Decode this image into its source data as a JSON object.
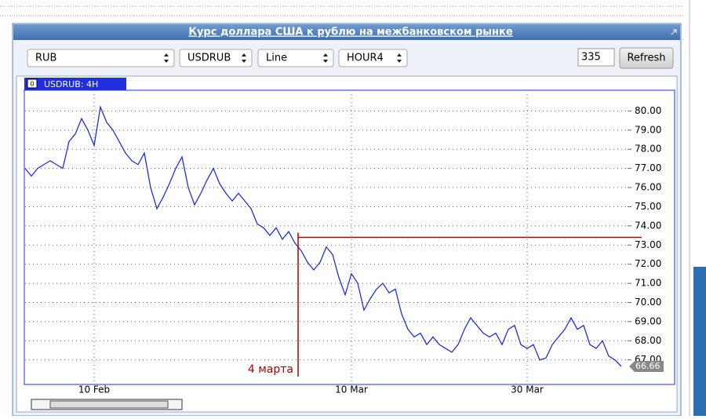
{
  "header": {
    "title": "Курс доллара США к рублю на межбанковском рынке"
  },
  "controls": {
    "selects": [
      "RUB",
      "USDRUB",
      "Line",
      "HOUR4"
    ],
    "count": "335",
    "button": "Refresh"
  },
  "chart_data": {
    "type": "line",
    "categories": [
      null,
      null,
      null,
      null,
      null,
      null,
      null,
      null,
      null,
      null,
      null,
      "10 Feb",
      null,
      null,
      null,
      null,
      null,
      null,
      null,
      null,
      null,
      null,
      null,
      null,
      null,
      null,
      null,
      null,
      null,
      null,
      null,
      null,
      null,
      null,
      null,
      null,
      null,
      null,
      null,
      null,
      null,
      null,
      null,
      null,
      null,
      null,
      null,
      null,
      null,
      null,
      null,
      null,
      "10 Mar",
      null,
      null,
      null,
      null,
      null,
      null,
      null,
      null,
      null,
      null,
      null,
      null,
      null,
      null,
      null,
      null,
      null,
      null,
      null,
      null,
      null,
      null,
      null,
      null,
      null,
      null,
      null,
      "30 Mar",
      null,
      null,
      null,
      null,
      null,
      null,
      null,
      null,
      null,
      null,
      null,
      null,
      null,
      null,
      null
    ],
    "series": [
      {
        "name": "USDRUB: 4H",
        "color": "#1f2fe0",
        "values": [
          77.0,
          76.6,
          77.0,
          77.2,
          77.4,
          77.2,
          77.0,
          78.4,
          78.8,
          79.6,
          79.0,
          78.2,
          80.2,
          79.4,
          79.0,
          78.4,
          77.8,
          77.4,
          77.2,
          77.8,
          76.0,
          74.9,
          75.5,
          76.2,
          77.0,
          77.6,
          76.0,
          75.1,
          75.7,
          76.4,
          77.0,
          76.2,
          75.7,
          75.3,
          75.7,
          75.3,
          74.9,
          74.1,
          73.9,
          73.5,
          73.9,
          73.3,
          73.7,
          73.1,
          72.7,
          72.1,
          71.7,
          72.1,
          72.9,
          72.5,
          71.3,
          70.4,
          71.5,
          71.0,
          69.6,
          70.2,
          70.7,
          71.0,
          70.5,
          70.7,
          69.4,
          68.6,
          68.2,
          68.4,
          67.8,
          68.2,
          67.8,
          67.6,
          67.4,
          67.8,
          68.6,
          69.2,
          68.8,
          68.4,
          68.2,
          68.4,
          67.8,
          68.6,
          68.8,
          67.8,
          67.6,
          67.8,
          67.0,
          67.1,
          67.8,
          68.2,
          68.6,
          69.2,
          68.6,
          68.8,
          67.8,
          67.6,
          68.0,
          67.2,
          67.0,
          66.66
        ]
      }
    ],
    "ylim": [
      65.8,
      81.0
    ],
    "yticks": [
      {
        "value": 67,
        "label": "67.00"
      },
      {
        "value": 68,
        "label": "68.00"
      },
      {
        "value": 69,
        "label": "69.00"
      },
      {
        "value": 70,
        "label": "70.00"
      },
      {
        "value": 71,
        "label": "71.00"
      },
      {
        "value": 72,
        "label": "72.00"
      },
      {
        "value": 73,
        "label": "73.00"
      },
      {
        "value": 74,
        "label": "74.00"
      },
      {
        "value": 75,
        "label": "75.00"
      },
      {
        "value": 76,
        "label": "76.00"
      },
      {
        "value": 77,
        "label": "77.00"
      },
      {
        "value": 78,
        "label": "78.00"
      },
      {
        "value": 79,
        "label": "79.00"
      },
      {
        "value": 80,
        "label": "80.00"
      }
    ],
    "grid": true,
    "price_marker": {
      "value": 66.66,
      "label": "66.66"
    },
    "annotations": [
      {
        "text": "4 марта",
        "value": 73.4,
        "color": "#b00000"
      }
    ]
  }
}
